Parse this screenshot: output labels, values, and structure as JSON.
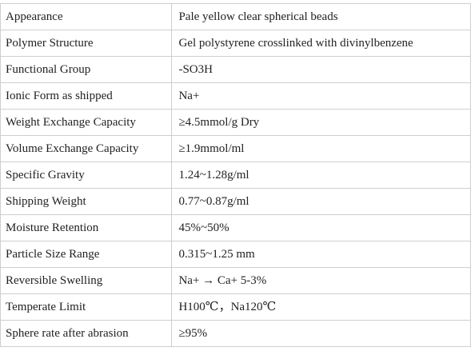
{
  "spec_table": {
    "rows": [
      {
        "property": "Appearance",
        "value": "Pale yellow clear spherical beads"
      },
      {
        "property": "Polymer Structure",
        "value": "Gel polystyrene crosslinked with divinylbenzene"
      },
      {
        "property": "Functional Group",
        "value": "-SO3H"
      },
      {
        "property": "Ionic Form as shipped",
        "value": "Na+"
      },
      {
        "property": "Weight Exchange Capacity",
        "value": "≥4.5mmol/g Dry"
      },
      {
        "property": "Volume Exchange Capacity",
        "value": "≥1.9mmol/ml"
      },
      {
        "property": "Specific Gravity",
        "value": "1.24~1.28g/ml"
      },
      {
        "property": "Shipping Weight",
        "value": "0.77~0.87g/ml"
      },
      {
        "property": "Moisture Retention",
        "value": "45%~50%"
      },
      {
        "property": "Particle Size Range",
        "value": "0.315~1.25 mm"
      },
      {
        "property": "Reversible Swelling",
        "value": "Na+ → Ca+   5-3%"
      },
      {
        "property": "Temperate Limit",
        "value": "H100℃，Na120℃"
      },
      {
        "property": "Sphere rate after abrasion",
        "value": "≥95%"
      }
    ]
  }
}
